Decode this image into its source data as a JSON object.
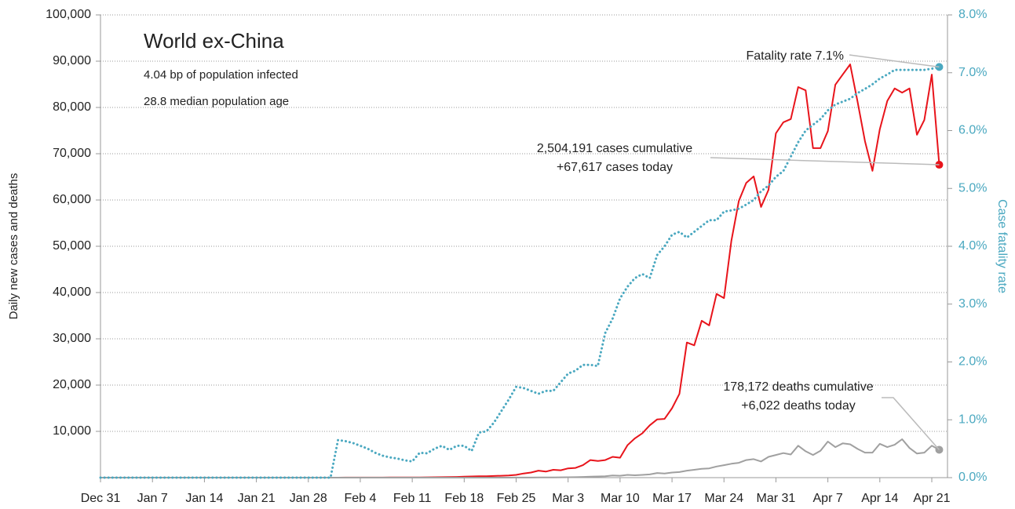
{
  "chart_data": {
    "type": "line",
    "title": "World ex-China",
    "notes": [
      "4.04 bp of population infected",
      "28.8 median population age"
    ],
    "ylabel": "Daily new cases and deaths",
    "y2label": "Case fatality rate",
    "categories": [
      "Dec 31",
      null,
      null,
      null,
      null,
      null,
      null,
      "Jan 7",
      null,
      null,
      null,
      null,
      null,
      null,
      "Jan 14",
      null,
      null,
      null,
      null,
      null,
      null,
      "Jan 21",
      null,
      null,
      null,
      null,
      null,
      null,
      "Jan 28",
      null,
      null,
      null,
      null,
      null,
      null,
      "Feb 4",
      null,
      null,
      null,
      null,
      null,
      null,
      "Feb 11",
      null,
      null,
      null,
      null,
      null,
      null,
      "Feb 18",
      null,
      null,
      null,
      null,
      null,
      null,
      "Feb 25",
      null,
      null,
      null,
      null,
      null,
      null,
      "Mar 3",
      null,
      null,
      null,
      null,
      null,
      null,
      "Mar 10",
      null,
      null,
      null,
      null,
      null,
      null,
      "Mar 17",
      null,
      null,
      null,
      null,
      null,
      null,
      "Mar 24",
      null,
      null,
      null,
      null,
      null,
      null,
      "Mar 31",
      null,
      null,
      null,
      null,
      null,
      null,
      "Apr 7",
      null,
      null,
      null,
      null,
      null,
      null,
      "Apr 14",
      null,
      null,
      null,
      null,
      null,
      null,
      "Apr 21",
      null
    ],
    "series": [
      {
        "color": "#e8141b",
        "style": "solid",
        "values": [
          0,
          0,
          0,
          0,
          0,
          0,
          0,
          0,
          0,
          0,
          0,
          0,
          0,
          0,
          0,
          0,
          0,
          0,
          0,
          0,
          0,
          0,
          0,
          0,
          0,
          0,
          0,
          0,
          0,
          0,
          3,
          5,
          8,
          10,
          12,
          15,
          18,
          20,
          25,
          30,
          35,
          40,
          45,
          50,
          60,
          80,
          100,
          120,
          150,
          200,
          250,
          300,
          300,
          350,
          400,
          450,
          600,
          900,
          1100,
          1500,
          1300,
          1700,
          1600,
          2000,
          2100,
          2700,
          3800,
          3600,
          3800,
          4500,
          4300,
          7000,
          8500,
          9600,
          11300,
          12600,
          12700,
          15000,
          18100,
          29200,
          28600,
          33900,
          32900,
          39700,
          38800,
          51200,
          59800,
          63700,
          65100,
          58500,
          62200,
          74400,
          76800,
          77500,
          84400,
          83700,
          71200,
          71200,
          74900,
          84900,
          87100,
          89300,
          81200,
          72700,
          66300,
          75300,
          81400,
          84100,
          83200,
          84100,
          74100,
          77300,
          87100,
          67617
        ]
      },
      {
        "color": "#a0a0a0",
        "style": "solid",
        "values": [
          0,
          0,
          0,
          0,
          0,
          0,
          0,
          0,
          0,
          0,
          0,
          0,
          0,
          0,
          0,
          0,
          0,
          0,
          0,
          0,
          0,
          0,
          0,
          0,
          0,
          0,
          0,
          0,
          0,
          0,
          0,
          0,
          0,
          0,
          0,
          0,
          0,
          0,
          0,
          0,
          0,
          0,
          0,
          0,
          0,
          0,
          0,
          0,
          0,
          0,
          0,
          2,
          3,
          5,
          6,
          8,
          10,
          15,
          20,
          30,
          40,
          50,
          60,
          80,
          100,
          150,
          200,
          250,
          300,
          450,
          400,
          600,
          500,
          600,
          700,
          1000,
          900,
          1100,
          1200,
          1500,
          1700,
          1900,
          2000,
          2400,
          2700,
          3000,
          3200,
          3800,
          4000,
          3500,
          4500,
          4900,
          5300,
          5000,
          6900,
          5700,
          4900,
          5800,
          7800,
          6600,
          7400,
          7200,
          6200,
          5400,
          5400,
          7300,
          6600,
          7100,
          8300,
          6400,
          5200,
          5400,
          6900,
          6022
        ]
      },
      {
        "color": "#4aa8c0",
        "style": "dotted",
        "axis": "y2",
        "values": [
          0,
          0,
          0,
          0,
          0,
          0,
          0,
          0,
          0,
          0,
          0,
          0,
          0,
          0,
          0,
          0,
          0,
          0,
          0,
          0,
          0,
          0,
          0,
          0,
          0,
          0,
          0,
          0,
          0,
          0,
          0,
          0,
          0.65,
          0.63,
          0.6,
          0.55,
          0.5,
          0.43,
          0.38,
          0.35,
          0.33,
          0.3,
          0.28,
          0.43,
          0.42,
          0.5,
          0.55,
          0.48,
          0.55,
          0.55,
          0.46,
          0.78,
          0.8,
          0.95,
          1.15,
          1.35,
          1.57,
          1.55,
          1.5,
          1.45,
          1.5,
          1.5,
          1.65,
          1.8,
          1.85,
          1.95,
          1.95,
          1.93,
          2.5,
          2.75,
          3.1,
          3.3,
          3.45,
          3.52,
          3.45,
          3.85,
          4.0,
          4.2,
          4.25,
          4.15,
          4.25,
          4.35,
          4.45,
          4.45,
          4.6,
          4.62,
          4.65,
          4.72,
          4.8,
          4.95,
          5.05,
          5.2,
          5.3,
          5.55,
          5.8,
          6.0,
          6.1,
          6.2,
          6.35,
          6.45,
          6.5,
          6.55,
          6.65,
          6.72,
          6.8,
          6.9,
          6.97,
          7.05,
          7.05,
          7.05,
          7.05,
          7.05,
          7.07,
          7.1
        ]
      }
    ],
    "annotations": [
      [
        "Fatality rate 7.1%"
      ],
      [
        "2,504,191 cases cumulative",
        "+67,617 cases today"
      ],
      [
        "178,172 deaths cumulative",
        "+6,022 deaths today"
      ]
    ],
    "ylim": [
      0,
      100000
    ],
    "yticks": [
      {
        "value": 10000,
        "label": "10,000"
      },
      {
        "value": 20000,
        "label": "20,000"
      },
      {
        "value": 30000,
        "label": "30,000"
      },
      {
        "value": 40000,
        "label": "40,000"
      },
      {
        "value": 50000,
        "label": "50,000"
      },
      {
        "value": 60000,
        "label": "60,000"
      },
      {
        "value": 70000,
        "label": "70,000"
      },
      {
        "value": 80000,
        "label": "80,000"
      },
      {
        "value": 90000,
        "label": "90,000"
      },
      {
        "value": 100000,
        "label": "100,000"
      }
    ],
    "y2lim": [
      0,
      8
    ],
    "y2ticks": [
      {
        "value": 0,
        "label": "0.0%"
      },
      {
        "value": 1,
        "label": "1.0%"
      },
      {
        "value": 2,
        "label": "2.0%"
      },
      {
        "value": 3,
        "label": "3.0%"
      },
      {
        "value": 4,
        "label": "4.0%"
      },
      {
        "value": 5,
        "label": "5.0%"
      },
      {
        "value": 6,
        "label": "6.0%"
      },
      {
        "value": 7,
        "label": "7.0%"
      },
      {
        "value": 8,
        "label": "8.0%"
      }
    ],
    "grid": true
  }
}
